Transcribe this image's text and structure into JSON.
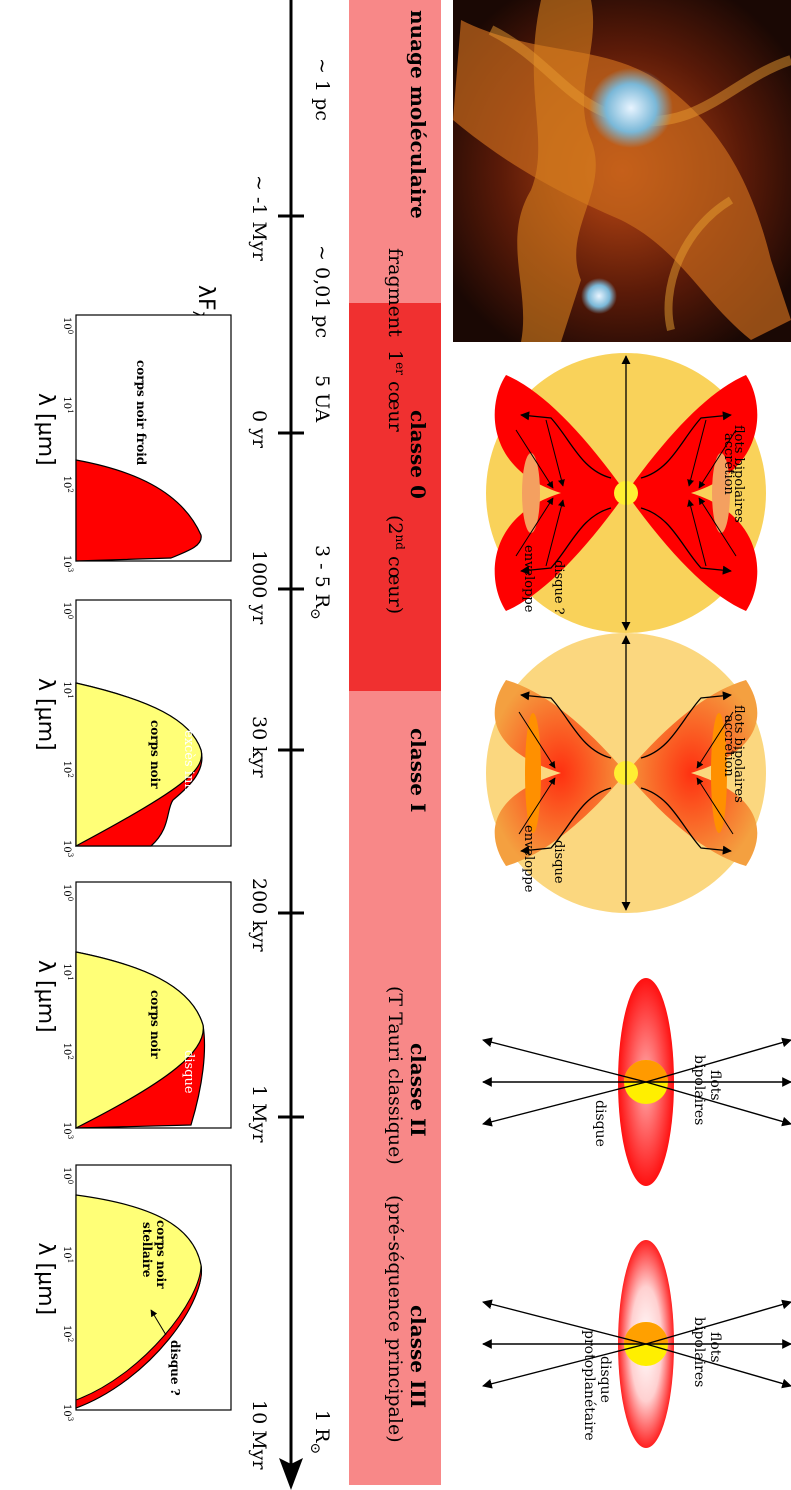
{
  "stages": {
    "cloud": {
      "title": "nuage moléculaire",
      "size": "~ 1 pc"
    },
    "class0": {
      "title": "classe 0",
      "fragment": "fragment",
      "first_core_a": "1",
      "first_core_b": "er",
      "first_core_c": " cœur",
      "second_core_a": "(2",
      "second_core_b": "nd",
      "second_core_c": " cœur)",
      "size_a": "~ 0,01 pc",
      "size_b": "5 UA",
      "size_c": "3 - 5 R",
      "sun_symbol": "⊙"
    },
    "class1": {
      "title": "classe I"
    },
    "class2": {
      "title": "classe II",
      "subtitle": "(T Tauri classique)"
    },
    "class3": {
      "title": "classe III",
      "subtitle": "(pré-séquence principale)",
      "size": "1 R",
      "sun_symbol": "⊙"
    }
  },
  "timeline": {
    "ticks": [
      "~ -1 Myr",
      "0 yr",
      "1000 yr",
      "30 kyr",
      "200 kyr",
      "1 Myr",
      "10 Myr"
    ]
  },
  "sketches": {
    "class0": {
      "accretion": "accrétion",
      "outflows": "flots bipolaires",
      "envelope": "enveloppe",
      "disk": "disque ?"
    },
    "class1": {
      "accretion": "accrétion",
      "outflows": "flots bipolaires",
      "envelope": "enveloppe",
      "disk": "disque"
    },
    "class2": {
      "outflows_a": "flots",
      "outflows_b": "bipolaires",
      "disk": "disque"
    },
    "class3": {
      "outflows_a": "flots",
      "outflows_b": "bipolaires",
      "disk_a": "disque",
      "disk_b": "protoplanétaire"
    }
  },
  "sed": {
    "ylabel": "λF",
    "ylabel_sub": "λ",
    "xlabel": "λ [µm]",
    "ticks_base": "10",
    "tick_exponents": [
      "0",
      "1",
      "2",
      "3"
    ],
    "panels": [
      {
        "labels": [
          "corps noir froid"
        ]
      },
      {
        "labels": [
          "corps noir",
          "excès infrarouge"
        ]
      },
      {
        "labels": [
          "corps noir",
          "disque"
        ]
      },
      {
        "labels": [
          "corps noir",
          "stellaire",
          "disque ?"
        ]
      }
    ]
  },
  "colors": {
    "band_light": "#f88888",
    "band_dark": "#f03030",
    "sed_red": "#ff0000",
    "sed_yellow": "#ffff77",
    "envelope": "#f9d25a",
    "star": "#ffef00"
  }
}
